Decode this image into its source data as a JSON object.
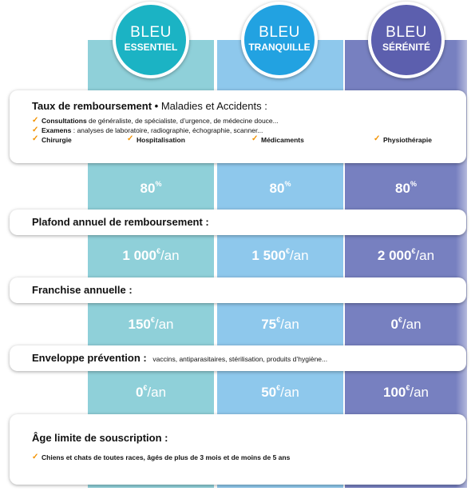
{
  "plans": [
    {
      "line1": "BLEU",
      "line2": "ESSENTIEL",
      "color": "#1bb3c4"
    },
    {
      "line1": "BLEU",
      "line2": "TRANQUILLE",
      "color": "#22a2e1"
    },
    {
      "line1": "BLEU",
      "line2": "SÉRÉNITÉ",
      "color": "#5c5fae"
    }
  ],
  "sections": {
    "remboursement": {
      "title": "Taux de remboursement",
      "bullet": "•",
      "subtitle": "Maladies et Accidents :",
      "consultations_label": "Consultations",
      "consultations_text": "de généraliste, de spécialiste, d’urgence, de médecine douce...",
      "examens_label": "Examens",
      "examens_text": ": analyses de laboratoire, radiographie, échographie, scanner...",
      "items": [
        "Chirurgie",
        "Hospitalisation",
        "Médicaments",
        "Physiothérapie"
      ],
      "values": [
        {
          "num": "80",
          "sup": "%",
          "unit": ""
        },
        {
          "num": "80",
          "sup": "%",
          "unit": ""
        },
        {
          "num": "80",
          "sup": "%",
          "unit": ""
        }
      ]
    },
    "plafond": {
      "title": "Plafond annuel de remboursement :",
      "values": [
        {
          "num": "1 000",
          "sup": "€",
          "unit": "/an"
        },
        {
          "num": "1 500",
          "sup": "€",
          "unit": "/an"
        },
        {
          "num": "2 000",
          "sup": "€",
          "unit": "/an"
        }
      ]
    },
    "franchise": {
      "title": "Franchise annuelle :",
      "values": [
        {
          "num": "150",
          "sup": "€",
          "unit": "/an"
        },
        {
          "num": "75",
          "sup": "€",
          "unit": "/an"
        },
        {
          "num": "0",
          "sup": "€",
          "unit": "/an"
        }
      ]
    },
    "prevention": {
      "title": "Enveloppe prévention :",
      "subtitle": "vaccins, antiparasitaires, stérilisation, produits d’hygiène...",
      "values": [
        {
          "num": "0",
          "sup": "€",
          "unit": "/an"
        },
        {
          "num": "50",
          "sup": "€",
          "unit": "/an"
        },
        {
          "num": "100",
          "sup": "€",
          "unit": "/an"
        }
      ]
    },
    "age": {
      "title": "Âge limite de souscription :",
      "text": "Chiens et chats de toutes races, âgés de plus de 3 mois et de moins de 5 ans"
    }
  },
  "check_glyph": "✓",
  "colors": {
    "check": "#f39200",
    "col1": "#8fd0d9",
    "col2": "#8ec8ec",
    "col3": "#7780c0"
  }
}
